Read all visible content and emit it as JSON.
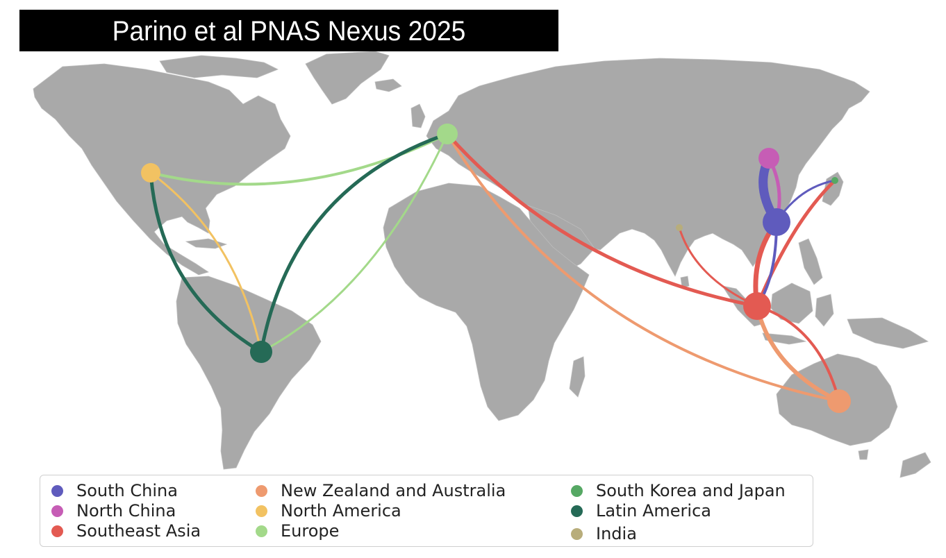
{
  "header": {
    "title": "Parino et al PNAS Nexus 2025"
  },
  "regions": {
    "south_china": {
      "label": "South China",
      "color": "#5f5bbd"
    },
    "north_china": {
      "label": "North China",
      "color": "#c65db5"
    },
    "southeast_asia": {
      "label": "Southeast Asia",
      "color": "#e35a52"
    },
    "nz_australia": {
      "label": "New Zealand and Australia",
      "color": "#ee9a6f"
    },
    "north_america": {
      "label": "North America",
      "color": "#f2c262"
    },
    "europe": {
      "label": "Europe",
      "color": "#a3d98a"
    },
    "korea_japan": {
      "label": "South Korea and Japan",
      "color": "#56a864"
    },
    "latin_america": {
      "label": "Latin America",
      "color": "#256a56"
    },
    "india": {
      "label": "India",
      "color": "#b8ad7b"
    }
  },
  "legend_order": [
    "south_china",
    "north_china",
    "southeast_asia",
    "nz_australia",
    "north_america",
    "europe",
    "korea_japan",
    "latin_america",
    "india"
  ],
  "map": {
    "land_color": "#a9a9a9",
    "background": "#ffffff"
  }
}
